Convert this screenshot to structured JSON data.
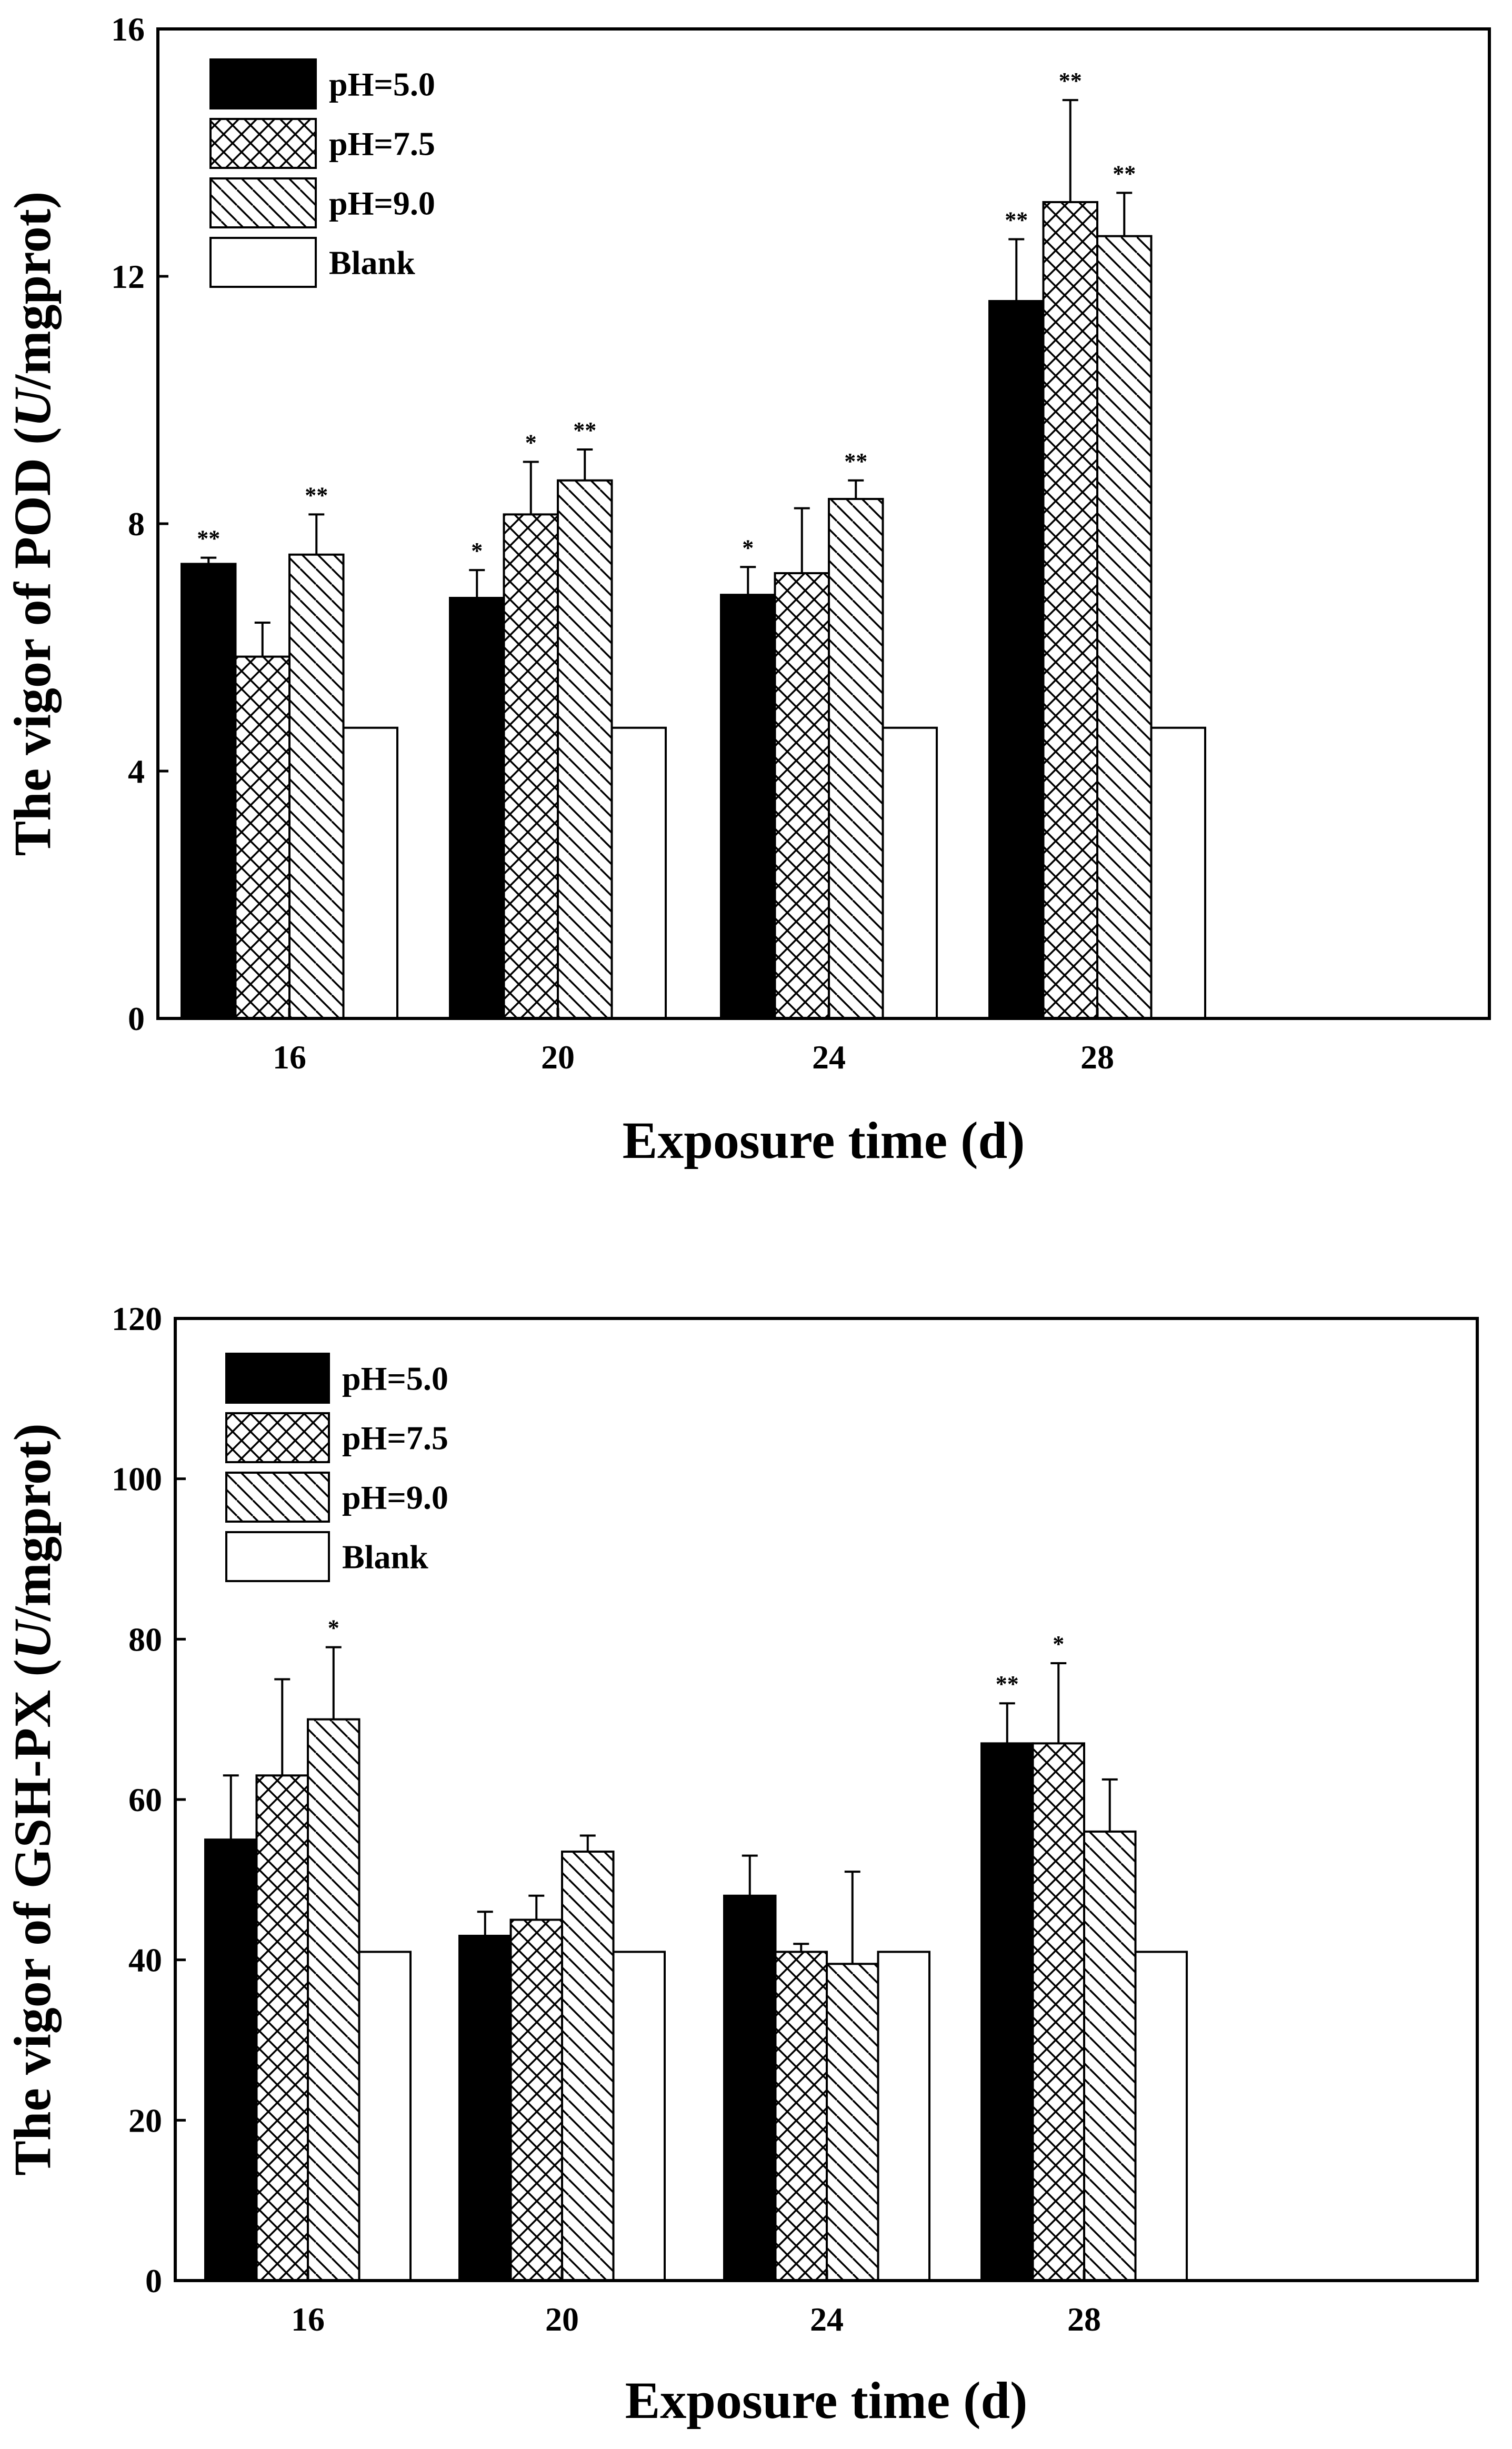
{
  "chart_data": [
    {
      "type": "bar",
      "title": "",
      "xlabel": "Exposure time (d)",
      "ylabel_prefix": "The vigor of POD (",
      "ylabel_unit_italic": "U",
      "ylabel_suffix": "/mgprot)",
      "categories": [
        "16",
        "20",
        "24",
        "28"
      ],
      "ylim": [
        0,
        16
      ],
      "yticks": [
        0,
        4,
        8,
        12,
        16
      ],
      "legend": {
        "position": "top-left",
        "entries": [
          "pH=5.0",
          "pH=7.5",
          "pH=9.0",
          "Blank"
        ]
      },
      "series": [
        {
          "name": "pH=5.0",
          "pattern": "solid",
          "values": [
            7.35,
            6.8,
            6.85,
            11.6
          ],
          "errors": [
            0.1,
            0.45,
            0.45,
            1.0
          ],
          "significance": [
            "**",
            "*",
            "*",
            "**"
          ]
        },
        {
          "name": "pH=7.5",
          "pattern": "crosshatch",
          "values": [
            5.85,
            8.15,
            7.2,
            13.2
          ],
          "errors": [
            0.55,
            0.85,
            1.05,
            1.65
          ],
          "significance": [
            "",
            "*",
            "",
            "**"
          ]
        },
        {
          "name": "pH=9.0",
          "pattern": "diagonal",
          "values": [
            7.5,
            8.7,
            8.4,
            12.65
          ],
          "errors": [
            0.65,
            0.5,
            0.3,
            0.7
          ],
          "significance": [
            "**",
            "**",
            "**",
            "**"
          ]
        },
        {
          "name": "Blank",
          "pattern": "white",
          "values": [
            4.7,
            4.7,
            4.7,
            4.7
          ],
          "errors": [
            0,
            0,
            0,
            0
          ],
          "significance": [
            "",
            "",
            "",
            ""
          ]
        }
      ]
    },
    {
      "type": "bar",
      "title": "",
      "xlabel": "Exposure time (d)",
      "ylabel_prefix": "The vigor of GSH-PX (",
      "ylabel_unit_italic": "U",
      "ylabel_suffix": "/mgprot)",
      "categories": [
        "16",
        "20",
        "24",
        "28"
      ],
      "ylim": [
        0,
        120
      ],
      "yticks": [
        0,
        20,
        40,
        60,
        80,
        100,
        120
      ],
      "legend": {
        "position": "top-left",
        "entries": [
          "pH=5.0",
          "pH=7.5",
          "pH=9.0",
          "Blank"
        ]
      },
      "series": [
        {
          "name": "pH=5.0",
          "pattern": "solid",
          "values": [
            55,
            43,
            48,
            67
          ],
          "errors": [
            8,
            3,
            5,
            5
          ],
          "significance": [
            "",
            "",
            "",
            "**"
          ]
        },
        {
          "name": "pH=7.5",
          "pattern": "crosshatch",
          "values": [
            63,
            45,
            41,
            67
          ],
          "errors": [
            12,
            3,
            1,
            10
          ],
          "significance": [
            "",
            "",
            "",
            "*"
          ]
        },
        {
          "name": "pH=9.0",
          "pattern": "diagonal",
          "values": [
            70,
            53.5,
            39.5,
            56
          ],
          "errors": [
            9,
            2,
            11.5,
            6.5
          ],
          "significance": [
            "*",
            "",
            "",
            ""
          ]
        },
        {
          "name": "Blank",
          "pattern": "white",
          "values": [
            41,
            41,
            41,
            41
          ],
          "errors": [
            0,
            0,
            0,
            0
          ],
          "significance": [
            "",
            "",
            "",
            ""
          ]
        }
      ]
    }
  ]
}
